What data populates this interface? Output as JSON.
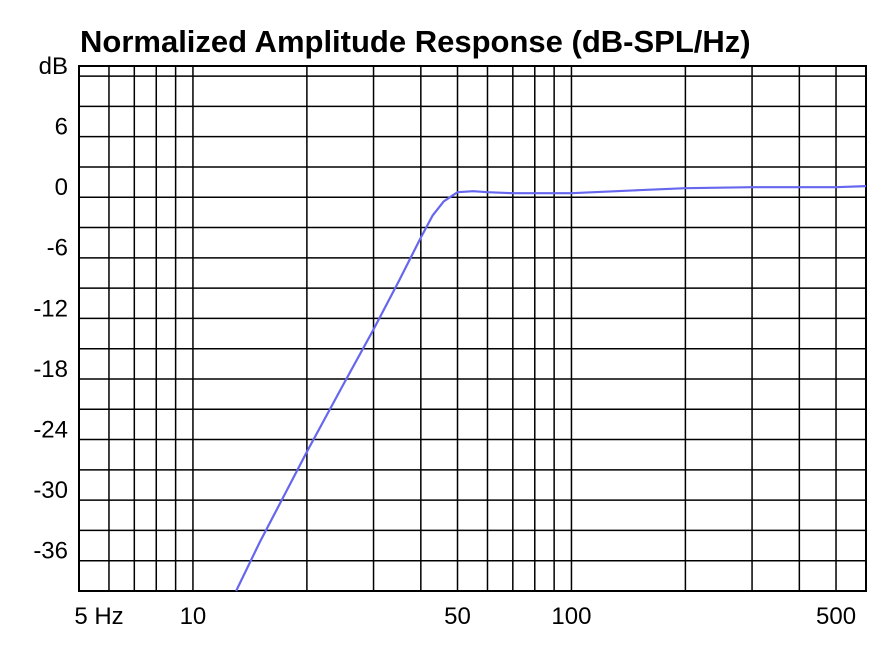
{
  "chart_data": {
    "type": "line",
    "title": "Normalized Amplitude Response (dB-SPL/Hz)",
    "xlabel": "",
    "ylabel": "",
    "x_scale": "log",
    "xlim": [
      5,
      600
    ],
    "ylim": [
      -40,
      12
    ],
    "grid": true,
    "x_ticks": [
      {
        "value": 5,
        "label": "5 Hz"
      },
      {
        "value": 10,
        "label": "10"
      },
      {
        "value": 50,
        "label": "50"
      },
      {
        "value": 100,
        "label": "100"
      },
      {
        "value": 500,
        "label": "500"
      }
    ],
    "y_ticks": [
      {
        "value": 12,
        "label": "dB"
      },
      {
        "value": 6,
        "label": "6"
      },
      {
        "value": 0,
        "label": "0"
      },
      {
        "value": -6,
        "label": "-6"
      },
      {
        "value": -12,
        "label": "-12"
      },
      {
        "value": -18,
        "label": "-18"
      },
      {
        "value": -24,
        "label": "-24"
      },
      {
        "value": -30,
        "label": "-30"
      },
      {
        "value": -36,
        "label": "-36"
      }
    ],
    "series": [
      {
        "color": "#6666ee",
        "x": [
          13,
          15,
          18,
          20,
          25,
          30,
          35,
          40,
          43,
          46,
          50,
          55,
          60,
          70,
          80,
          100,
          150,
          200,
          300,
          500,
          600
        ],
        "y": [
          -40,
          -35.2,
          -29.5,
          -26.2,
          -19.5,
          -14.1,
          -9.3,
          -5,
          -2.8,
          -1.4,
          -0.5,
          -0.4,
          -0.5,
          -0.6,
          -0.6,
          -0.6,
          -0.3,
          -0.1,
          0,
          0,
          0.1
        ]
      }
    ]
  }
}
